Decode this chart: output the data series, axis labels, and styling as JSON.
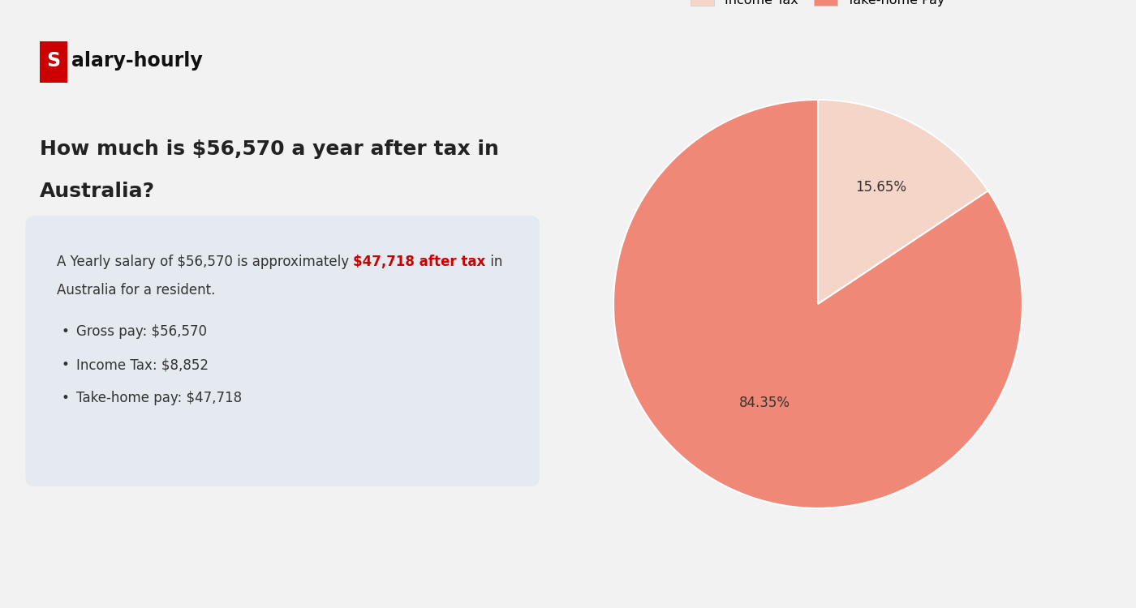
{
  "background_color": "#f2f2f2",
  "logo_s_bg": "#cc0000",
  "logo_s_text": "S",
  "logo_rest": "alary-hourly",
  "heading_line1": "How much is $56,570 a year after tax in",
  "heading_line2": "Australia?",
  "heading_color": "#222222",
  "box_bg": "#e4eaf0",
  "box_highlight_color": "#cc0000",
  "bullet_items": [
    "Gross pay: $56,570",
    "Income Tax: $8,852",
    "Take-home pay: $47,718"
  ],
  "pie_values": [
    15.65,
    84.35
  ],
  "pie_colors": [
    "#f5d5c8",
    "#f08878"
  ],
  "pie_pct_labels": [
    "15.65%",
    "84.35%"
  ],
  "pie_text_color": "#333333",
  "legend_labels": [
    "Income Tax",
    "Take-home Pay"
  ],
  "font_color": "#333333",
  "line1_normal": "A Yearly salary of $56,570 is approximately ",
  "line1_highlight": "$47,718 after tax",
  "line1_end": " in",
  "line2": "Australia for a resident."
}
